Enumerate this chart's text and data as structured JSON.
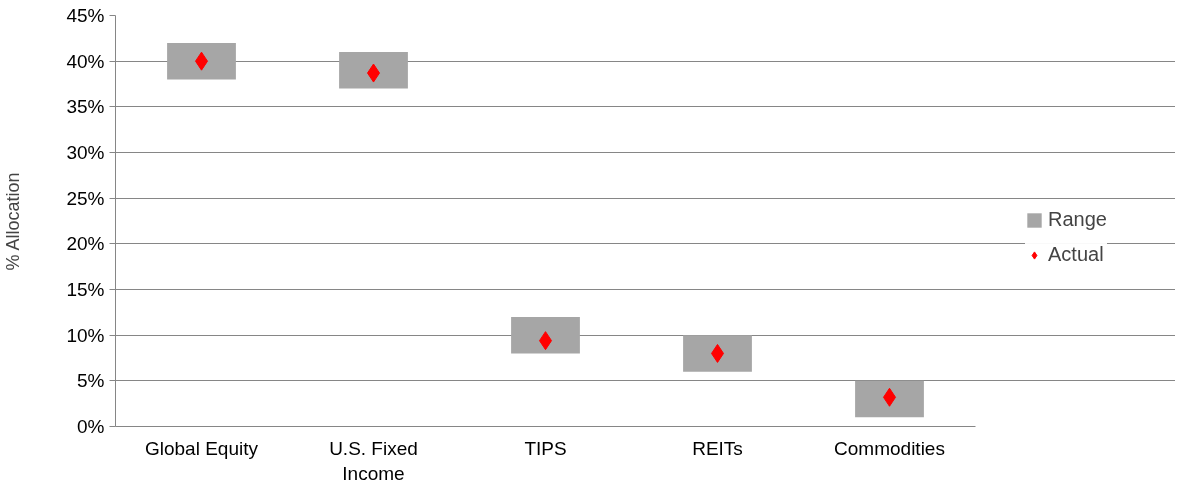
{
  "chart_data": {
    "type": "bar",
    "ylabel": "% Allocation",
    "categories": [
      "Global Equity",
      "U.S. Fixed Income",
      "TIPS",
      "REITs",
      "Commodities"
    ],
    "series": [
      {
        "name": "Range",
        "color": "#a6a6a6",
        "base": [
          38,
          37,
          8,
          6,
          1
        ],
        "values": [
          4,
          4,
          4,
          4,
          4
        ]
      },
      {
        "name": "Actual",
        "type": "scatter",
        "marker": "diamond",
        "color": "#ff0000",
        "values": [
          40,
          38.7,
          9.4,
          8,
          3.2
        ]
      }
    ],
    "ylim": [
      0,
      45
    ],
    "yticks": [
      {
        "value": 0,
        "label": "0%"
      },
      {
        "value": 5,
        "label": "5%"
      },
      {
        "value": 10,
        "label": "10%"
      },
      {
        "value": 15,
        "label": "15%"
      },
      {
        "value": 20,
        "label": "20%"
      },
      {
        "value": 25,
        "label": "25%"
      },
      {
        "value": 30,
        "label": "30%"
      },
      {
        "value": 35,
        "label": "35%"
      },
      {
        "value": 40,
        "label": "40%"
      },
      {
        "value": 45,
        "label": "45%"
      }
    ],
    "grid": "y",
    "legend": "right"
  }
}
